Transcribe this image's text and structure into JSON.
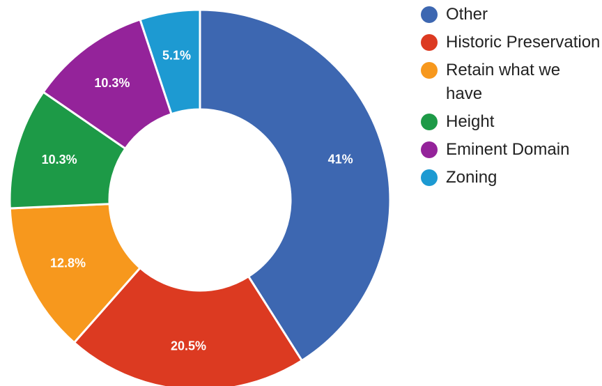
{
  "chart_data": {
    "type": "pie",
    "donut": true,
    "legend_position": "right",
    "categories": [
      "Other",
      "Historic Preservation",
      "Retain what we have",
      "Height",
      "Eminent Domain",
      "Zoning"
    ],
    "values": [
      41,
      20.5,
      12.8,
      10.3,
      10.3,
      5.1
    ],
    "value_labels": [
      "41%",
      "20.5%",
      "12.8%",
      "10.3%",
      "10.3%",
      "5.1%"
    ],
    "colors": [
      "#3d67b1",
      "#dc3a21",
      "#f7981d",
      "#1d9a47",
      "#94239a",
      "#1d9ad2"
    ]
  }
}
